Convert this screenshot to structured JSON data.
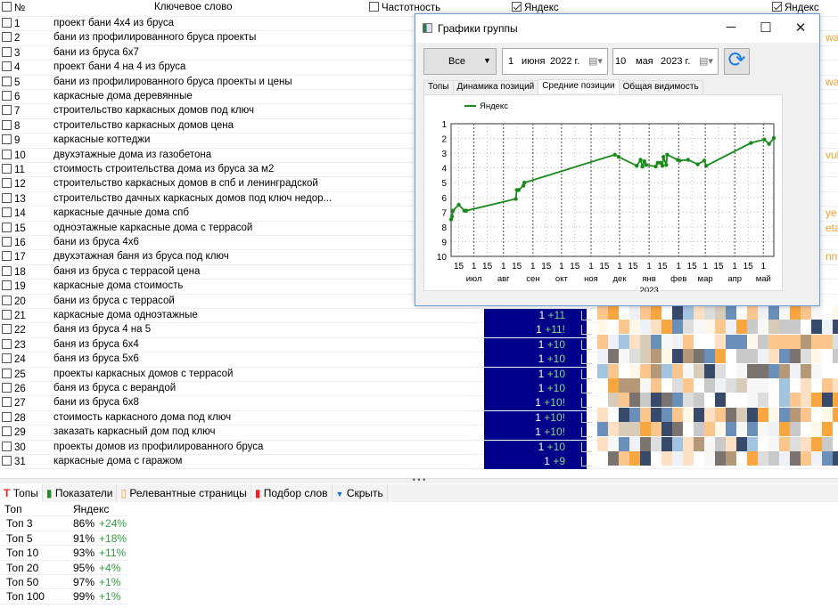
{
  "header": {
    "num": "№",
    "keyword": "Ключевое слово",
    "freq": "Частотность",
    "yandex1": "Яндекс",
    "yandex2": "Яндекс"
  },
  "rows": [
    {
      "n": "1",
      "kw": "проект бани 4х4 из бруса"
    },
    {
      "n": "2",
      "kw": "бани из профилированного бруса проекты",
      "or": "wan"
    },
    {
      "n": "3",
      "kw": "бани из бруса 6х7"
    },
    {
      "n": "4",
      "kw": "проект бани 4 на 4 из бруса"
    },
    {
      "n": "5",
      "kw": "бани из профилированного бруса проекты и цены",
      "or": "wan"
    },
    {
      "n": "6",
      "kw": "каркасные дома деревянные"
    },
    {
      "n": "7",
      "kw": "строительство каркасных домов под ключ"
    },
    {
      "n": "8",
      "kw": "строительство каркасных домов цена"
    },
    {
      "n": "9",
      "kw": "каркасные коттеджи"
    },
    {
      "n": "10",
      "kw": "двухэтажные дома из газобетона",
      "or": "vukh"
    },
    {
      "n": "11",
      "kw": "стоимость строительства дома из бруса за м2"
    },
    {
      "n": "12",
      "kw": "строительство каркасных домов в спб и ленинградской"
    },
    {
      "n": "13",
      "kw": "строительство дачных каркасных домов под ключ недор..."
    },
    {
      "n": "14",
      "kw": "каркасные дачные дома спб",
      "or": "ye"
    },
    {
      "n": "15",
      "kw": "одноэтажные каркасные дома с террасой",
      "or": "etazh"
    },
    {
      "n": "16",
      "kw": "бани из бруса 4х6"
    },
    {
      "n": "17",
      "kw": "двухэтажная баня из бруса под ключ",
      "or": "nnye"
    },
    {
      "n": "18",
      "kw": "баня из бруса с террасой цена"
    },
    {
      "n": "19",
      "kw": "каркасные дома стоимость"
    },
    {
      "n": "20",
      "kw": "бани из бруса с террасой"
    },
    {
      "n": "21",
      "kw": "каркасные дома одноэтажные",
      "pos": "1",
      "d": "+11"
    },
    {
      "n": "22",
      "kw": "баня из бруса 4 на 5",
      "pos": "1",
      "d": "+11!"
    },
    {
      "n": "23",
      "kw": "баня из бруса 6х4",
      "pos": "1",
      "d": "+10"
    },
    {
      "n": "24",
      "kw": "баня из бруса 5х6",
      "pos": "1",
      "d": "+10"
    },
    {
      "n": "25",
      "kw": "проекты каркасных домов с террасой",
      "pos": "1",
      "d": "+10"
    },
    {
      "n": "26",
      "kw": "баня из бруса с верандой",
      "pos": "1",
      "d": "+10"
    },
    {
      "n": "27",
      "kw": "бани из бруса 6х8",
      "pos": "1",
      "d": "+10!"
    },
    {
      "n": "28",
      "kw": "стоимость каркасного дома под ключ",
      "pos": "1",
      "d": "+10!"
    },
    {
      "n": "29",
      "kw": "заказать каркасный дом под ключ",
      "pos": "1",
      "d": "+10!"
    },
    {
      "n": "30",
      "kw": "проекты домов из профилированного бруса",
      "pos": "1",
      "d": "+10"
    },
    {
      "n": "31",
      "kw": "каркасные дома с гаражом",
      "pos": "1",
      "d": "+9"
    }
  ],
  "dialog": {
    "title": "Графики группы",
    "filter": "Все",
    "from": {
      "day": "1",
      "month": "июня",
      "year": "2022 г."
    },
    "to": {
      "day": "10",
      "month": "мая",
      "year": "2023 г."
    },
    "tabs": [
      "Топы",
      "Динамика позиций",
      "Средние позиции",
      "Общая видимость"
    ],
    "active_tab": 2
  },
  "chart_data": {
    "type": "line",
    "legend": "top-left",
    "grid": true,
    "ylim": [
      10,
      1
    ],
    "y_inverted": true,
    "xlim": [
      "2022-06-07",
      "2023-05-12"
    ],
    "yticks": [
      "1",
      "2",
      "3",
      "4",
      "5",
      "6",
      "7",
      "8",
      "9",
      "10"
    ],
    "months": [
      "июл",
      "авг",
      "сен",
      "окт",
      "ноя",
      "дек",
      "янв",
      "фев",
      "мар",
      "апр",
      "май"
    ],
    "year_label": "2023",
    "series": [
      {
        "name": "Яндекс",
        "color": "#1a8a1a",
        "points": [
          [
            "2022-06-07",
            7.5
          ],
          [
            "2022-06-08",
            7.3
          ],
          [
            "2022-06-09",
            6.9
          ],
          [
            "2022-06-15",
            6.5
          ],
          [
            "2022-06-21",
            6.9
          ],
          [
            "2022-06-23",
            6.9
          ],
          [
            "2022-08-14",
            6.1
          ],
          [
            "2022-08-15",
            5.5
          ],
          [
            "2022-08-17",
            5.5
          ],
          [
            "2022-08-22",
            5.2
          ],
          [
            "2022-08-23",
            5.0
          ],
          [
            "2022-11-26",
            3.1
          ],
          [
            "2022-11-30",
            3.25
          ],
          [
            "2022-12-19",
            3.85
          ],
          [
            "2022-12-23",
            3.45
          ],
          [
            "2022-12-25",
            3.9
          ],
          [
            "2022-12-27",
            3.55
          ],
          [
            "2022-12-29",
            3.8
          ],
          [
            "2023-01-08",
            3.9
          ],
          [
            "2023-01-10",
            3.65
          ],
          [
            "2023-01-13",
            3.65
          ],
          [
            "2023-01-15",
            3.85
          ],
          [
            "2023-01-16",
            3.25
          ],
          [
            "2023-01-19",
            3.8
          ],
          [
            "2023-01-20",
            3.1
          ],
          [
            "2023-01-31",
            3.45
          ],
          [
            "2023-02-02",
            3.5
          ],
          [
            "2023-02-11",
            3.45
          ],
          [
            "2023-02-21",
            3.75
          ],
          [
            "2023-02-28",
            3.5
          ],
          [
            "2023-03-02",
            3.85
          ],
          [
            "2023-04-18",
            2.3
          ],
          [
            "2023-05-02",
            2.07
          ],
          [
            "2023-05-07",
            2.37
          ],
          [
            "2023-05-12",
            1.97
          ]
        ]
      }
    ]
  },
  "bottom": {
    "tabs": [
      "Топы",
      "Показатели",
      "Релевантные страницы",
      "Подбор слов",
      "Скрыть"
    ],
    "table": {
      "headers": [
        "Топ",
        "Яндекс"
      ],
      "rows": [
        {
          "t": "Топ 3",
          "v": "86%",
          "d": "+24%"
        },
        {
          "t": "Топ 5",
          "v": "91%",
          "d": "+18%"
        },
        {
          "t": "Топ 10",
          "v": "93%",
          "d": "+11%"
        },
        {
          "t": "Топ 20",
          "v": "95%",
          "d": "+4%"
        },
        {
          "t": "Топ 50",
          "v": "97%",
          "d": "+1%"
        },
        {
          "t": "Топ 100",
          "v": "99%",
          "d": "+1%"
        }
      ]
    }
  }
}
